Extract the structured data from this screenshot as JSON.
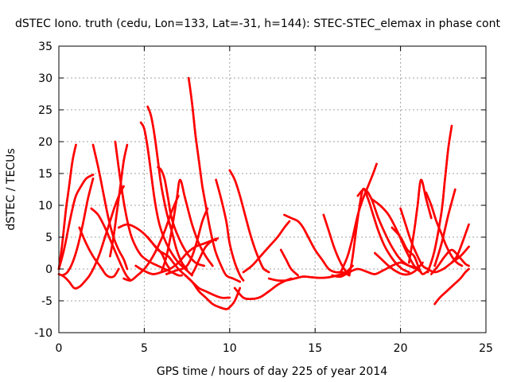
{
  "chart_data": {
    "type": "scatter",
    "title": "dSTEC Iono. truth (cedu, Lon=133, Lat=-31, h=144): STEC-STEC_elemax in phase cont",
    "xlabel": "GPS time / hours of day 225 of year 2014",
    "ylabel": "dSTEC  / TECUs",
    "xlim": [
      0,
      25
    ],
    "ylim": [
      -10,
      35
    ],
    "xticks": [
      "0",
      "5",
      "10",
      "15",
      "20",
      "25"
    ],
    "yticks": [
      "-10",
      "-5",
      "0",
      "5",
      "10",
      "15",
      "20",
      "25",
      "30",
      "35"
    ],
    "grid": true,
    "marker": "+",
    "color": "#ff0000",
    "series": [
      {
        "x": [
          0.0,
          0.3,
          0.6,
          0.8,
          1.0,
          1.3,
          1.6,
          2.0
        ],
        "y": [
          0.0,
          3.0,
          7.0,
          9.5,
          11.5,
          13.0,
          14.2,
          14.8
        ]
      },
      {
        "x": [
          0.0,
          0.2,
          0.4,
          0.6,
          0.8,
          1.0
        ],
        "y": [
          0.0,
          4.0,
          9.0,
          13.0,
          17.0,
          19.5
        ]
      },
      {
        "x": [
          0.2,
          0.5,
          0.8,
          1.1,
          1.4,
          1.7,
          2.0
        ],
        "y": [
          -1.0,
          -0.5,
          1.0,
          3.5,
          7.0,
          11.0,
          14.2
        ]
      },
      {
        "x": [
          0.0,
          0.3,
          0.6,
          0.9,
          1.2,
          1.5,
          1.8,
          2.1,
          2.4,
          2.7,
          3.0,
          3.3,
          3.6,
          3.8
        ],
        "y": [
          -0.8,
          -1.2,
          -2.0,
          -3.0,
          -2.8,
          -2.0,
          -1.0,
          0.5,
          2.5,
          5.0,
          7.5,
          10.0,
          12.0,
          13.0
        ]
      },
      {
        "x": [
          2.0,
          2.3,
          2.6,
          2.9,
          3.2,
          3.5,
          3.8,
          4.0
        ],
        "y": [
          19.5,
          16.0,
          12.0,
          8.0,
          5.0,
          3.0,
          1.5,
          0.0
        ]
      },
      {
        "x": [
          1.9,
          2.3,
          2.7,
          3.1,
          3.5,
          3.9,
          4.2
        ],
        "y": [
          9.5,
          8.5,
          6.5,
          4.0,
          1.5,
          -0.8,
          -1.8
        ]
      },
      {
        "x": [
          1.2,
          1.6,
          2.0,
          2.4,
          2.8,
          3.2,
          3.5
        ],
        "y": [
          6.5,
          4.0,
          2.0,
          0.5,
          -1.0,
          -1.2,
          0.0
        ]
      },
      {
        "x": [
          3.0,
          3.2,
          3.4,
          3.6,
          3.8,
          4.0
        ],
        "y": [
          2.0,
          5.0,
          9.0,
          13.0,
          17.0,
          19.5
        ]
      },
      {
        "x": [
          3.3,
          3.6,
          3.9,
          4.2,
          4.5,
          4.8,
          5.1,
          5.4,
          5.8,
          6.2,
          6.6,
          7.0,
          7.2
        ],
        "y": [
          20.0,
          14.0,
          9.0,
          5.5,
          3.5,
          2.2,
          1.5,
          1.0,
          0.5,
          0.0,
          -0.5,
          -1.0,
          -1.0
        ]
      },
      {
        "x": [
          3.5,
          4.0,
          4.5,
          5.0,
          5.5,
          6.0,
          6.3,
          6.5
        ],
        "y": [
          6.5,
          7.0,
          6.5,
          5.5,
          4.0,
          2.5,
          0.8,
          0.0
        ]
      },
      {
        "x": [
          3.8,
          4.2,
          4.6,
          5.0,
          5.4,
          5.8,
          6.2,
          6.6,
          7.0
        ],
        "y": [
          -1.5,
          -1.8,
          -1.0,
          0.0,
          1.5,
          3.5,
          6.0,
          9.0,
          11.5
        ]
      },
      {
        "x": [
          4.8,
          5.0,
          5.2,
          5.4,
          5.6,
          5.8,
          6.0,
          6.3,
          6.6,
          7.0,
          7.4,
          7.8
        ],
        "y": [
          23.0,
          22.0,
          19.0,
          15.0,
          11.0,
          8.0,
          6.0,
          4.0,
          2.5,
          1.0,
          0.0,
          -1.0
        ]
      },
      {
        "x": [
          5.2,
          5.4,
          5.6,
          5.8,
          6.0,
          6.3,
          6.6,
          6.9,
          7.2,
          7.5
        ],
        "y": [
          25.5,
          24.0,
          21.0,
          17.0,
          13.0,
          9.0,
          6.0,
          3.0,
          1.0,
          0.0
        ]
      },
      {
        "x": [
          5.2,
          5.5,
          5.8,
          6.1,
          6.4,
          6.7,
          7.0,
          7.4,
          7.8,
          8.2,
          8.6,
          9.0,
          9.5,
          10.0
        ],
        "y": [
          5.0,
          4.0,
          3.0,
          2.5,
          2.0,
          1.0,
          0.0,
          -1.0,
          -2.0,
          -3.0,
          -3.5,
          -4.0,
          -4.5,
          -4.5
        ]
      },
      {
        "x": [
          5.8,
          6.0,
          6.2,
          6.4,
          6.6,
          7.0,
          7.5,
          8.0,
          8.5
        ],
        "y": [
          16.0,
          15.5,
          14.0,
          11.0,
          8.0,
          5.0,
          2.5,
          1.0,
          0.5
        ]
      },
      {
        "x": [
          4.5,
          5.0,
          5.5,
          6.0,
          6.5,
          7.0,
          7.5,
          8.0,
          8.5,
          9.0,
          9.2
        ],
        "y": [
          0.5,
          -0.3,
          -0.8,
          -0.5,
          0.0,
          1.0,
          2.5,
          3.5,
          4.0,
          4.5,
          4.5
        ]
      },
      {
        "x": [
          6.0,
          6.3,
          6.6,
          6.9,
          7.1,
          7.4,
          7.8,
          8.2,
          8.6,
          9.0
        ],
        "y": [
          -0.5,
          2.0,
          6.0,
          11.0,
          14.0,
          11.0,
          7.0,
          4.0,
          2.0,
          0.5
        ]
      },
      {
        "x": [
          6.3,
          6.6,
          6.9,
          7.2,
          7.5,
          7.8,
          8.1,
          8.4,
          8.7
        ],
        "y": [
          -0.8,
          -0.5,
          -0.2,
          0.0,
          0.5,
          2.0,
          4.5,
          7.5,
          9.5
        ]
      },
      {
        "x": [
          7.6,
          7.8,
          8.0,
          8.2,
          8.4,
          8.6,
          8.8,
          9.0,
          9.2,
          9.5,
          9.8,
          10.2,
          10.6
        ],
        "y": [
          30.0,
          26.0,
          21.0,
          17.0,
          13.0,
          10.0,
          7.0,
          4.5,
          2.5,
          0.5,
          -1.0,
          -1.5,
          -2.0
        ]
      },
      {
        "x": [
          7.4,
          7.8,
          8.2,
          8.6,
          9.0,
          9.4,
          9.8,
          10.0,
          10.3,
          10.6
        ],
        "y": [
          -1.0,
          -2.0,
          -3.5,
          -4.5,
          -5.5,
          -6.0,
          -6.3,
          -6.0,
          -5.0,
          -3.0
        ]
      },
      {
        "x": [
          7.8,
          8.0,
          8.3,
          8.6,
          9.0,
          9.3
        ],
        "y": [
          -0.8,
          0.2,
          2.0,
          3.5,
          4.5,
          4.8
        ]
      },
      {
        "x": [
          9.2,
          9.5,
          9.8,
          10.0,
          10.3,
          10.6,
          10.8
        ],
        "y": [
          14.0,
          11.0,
          7.5,
          4.0,
          1.0,
          -1.0,
          -1.8
        ]
      },
      {
        "x": [
          10.0,
          10.3,
          10.6,
          10.9,
          11.2,
          11.5,
          11.8,
          12.0,
          12.3
        ],
        "y": [
          15.5,
          14.0,
          11.5,
          8.5,
          5.5,
          3.0,
          1.0,
          0.0,
          -0.5
        ]
      },
      {
        "x": [
          10.3,
          10.8,
          11.3,
          11.8,
          12.3,
          12.8,
          13.3,
          13.6
        ],
        "y": [
          -3.0,
          -4.5,
          -4.7,
          -4.4,
          -3.5,
          -2.5,
          -1.8,
          -1.5
        ]
      },
      {
        "x": [
          10.8,
          11.3,
          11.8,
          12.3,
          12.8,
          13.2,
          13.5
        ],
        "y": [
          -0.5,
          0.5,
          2.0,
          3.5,
          5.0,
          6.5,
          7.5
        ]
      },
      {
        "x": [
          12.3,
          12.8,
          13.3,
          13.8,
          14.3,
          14.8,
          15.3,
          15.8,
          16.3,
          16.8,
          17.2
        ],
        "y": [
          -1.5,
          -1.8,
          -1.8,
          -1.5,
          -1.2,
          -1.3,
          -1.4,
          -1.3,
          -1.0,
          -0.5,
          0.5
        ]
      },
      {
        "x": [
          13.2,
          13.6,
          14.0,
          14.3,
          14.6,
          15.0,
          15.4,
          15.8,
          16.2,
          16.6,
          17.0
        ],
        "y": [
          8.5,
          8.0,
          7.5,
          6.5,
          5.0,
          3.0,
          1.5,
          0.0,
          -0.5,
          -0.5,
          -1.0
        ]
      },
      {
        "x": [
          13.0,
          13.3,
          13.6,
          14.0
        ],
        "y": [
          3.0,
          1.5,
          0.0,
          -1.0
        ]
      },
      {
        "x": [
          15.5,
          15.8,
          16.1,
          16.4,
          16.7,
          17.0
        ],
        "y": [
          8.5,
          6.0,
          3.5,
          1.5,
          0.0,
          -1.0
        ]
      },
      {
        "x": [
          16.0,
          16.5,
          17.0,
          17.5,
          18.0,
          18.5,
          19.0,
          19.5,
          20.0,
          20.5,
          21.0
        ],
        "y": [
          -1.0,
          -1.2,
          -0.5,
          0.0,
          -0.4,
          -0.8,
          -0.2,
          0.5,
          1.0,
          0.5,
          0.2
        ]
      },
      {
        "x": [
          16.5,
          16.9,
          17.2,
          17.5,
          17.8,
          18.1,
          18.4,
          18.6
        ],
        "y": [
          -0.5,
          2.0,
          5.0,
          8.5,
          11.0,
          13.0,
          15.0,
          16.5
        ]
      },
      {
        "x": [
          17.0,
          17.2,
          17.5,
          17.8,
          18.1,
          18.4,
          18.7,
          19.0,
          19.3,
          19.7,
          20.1,
          20.5
        ],
        "y": [
          -1.0,
          2.0,
          8.0,
          12.5,
          11.0,
          8.5,
          6.0,
          4.0,
          2.5,
          1.0,
          0.0,
          -0.5
        ]
      },
      {
        "x": [
          17.5,
          17.9,
          18.3,
          18.7,
          19.2,
          19.6,
          20.0,
          20.5,
          21.0
        ],
        "y": [
          11.5,
          12.5,
          11.0,
          8.0,
          5.0,
          3.0,
          1.5,
          0.5,
          0.0
        ]
      },
      {
        "x": [
          18.3,
          18.8,
          19.3,
          19.8,
          20.3,
          20.8,
          21.2
        ],
        "y": [
          11.0,
          10.0,
          8.5,
          6.0,
          3.0,
          0.5,
          -0.5
        ]
      },
      {
        "x": [
          18.5,
          18.9,
          19.3,
          19.7,
          20.1,
          20.5,
          20.9,
          21.3
        ],
        "y": [
          2.5,
          1.5,
          0.5,
          -0.3,
          -0.8,
          -0.8,
          -0.2,
          1.0
        ]
      },
      {
        "x": [
          19.5,
          20.0,
          20.4,
          20.8,
          21.1,
          21.3,
          21.6
        ],
        "y": [
          6.5,
          5.0,
          3.0,
          2.0,
          0.0,
          -0.8,
          -0.3
        ]
      },
      {
        "x": [
          20.0,
          20.3,
          20.6,
          21.0,
          21.3,
          21.6,
          22.0,
          22.5,
          23.0,
          23.5,
          24.0
        ],
        "y": [
          9.5,
          7.0,
          4.5,
          2.0,
          0.5,
          0.0,
          -0.5,
          0.0,
          1.0,
          2.0,
          3.5
        ]
      },
      {
        "x": [
          20.5,
          20.8,
          21.0,
          21.2,
          21.5,
          21.8
        ],
        "y": [
          1.0,
          6.0,
          10.0,
          14.0,
          11.0,
          8.0
        ]
      },
      {
        "x": [
          21.5,
          21.8,
          22.1,
          22.4,
          22.7,
          23.0,
          23.3,
          23.6
        ],
        "y": [
          12.0,
          10.0,
          7.5,
          5.5,
          3.5,
          2.0,
          1.0,
          0.5
        ]
      },
      {
        "x": [
          21.6,
          22.0,
          22.4,
          22.6,
          22.8,
          23.0
        ],
        "y": [
          -0.5,
          3.0,
          9.0,
          14.0,
          19.0,
          22.5
        ]
      },
      {
        "x": [
          21.8,
          22.2,
          22.6,
          23.0,
          23.4,
          23.8,
          24.0
        ],
        "y": [
          -0.8,
          0.5,
          2.0,
          3.0,
          2.0,
          0.8,
          0.5
        ]
      },
      {
        "x": [
          22.0,
          22.3,
          22.7,
          23.1,
          23.5,
          23.8,
          24.0
        ],
        "y": [
          -5.5,
          -4.5,
          -3.5,
          -2.5,
          -1.5,
          -0.5,
          0.0
        ]
      },
      {
        "x": [
          22.0,
          22.4,
          22.8,
          23.2
        ],
        "y": [
          0.5,
          4.0,
          8.5,
          12.5
        ]
      },
      {
        "x": [
          23.0,
          23.3,
          23.6,
          23.8,
          24.0
        ],
        "y": [
          1.0,
          2.0,
          4.0,
          5.5,
          7.0
        ]
      }
    ]
  }
}
